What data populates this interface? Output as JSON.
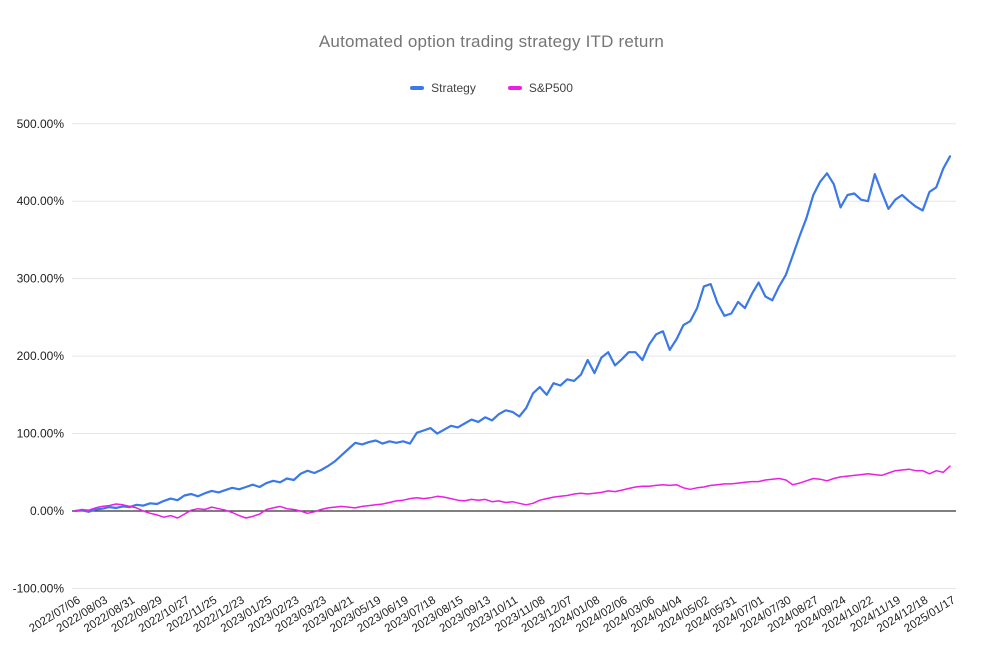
{
  "chart": {
    "title": "Automated option trading strategy ITD return"
  },
  "colors": {
    "strategy_line": "#3b78e8",
    "sp500_line": "#ea1ee4",
    "grid": "#e6e6e6",
    "zero_line": "#333333",
    "title_text": "#757575",
    "axis_text": "#222222",
    "legend_text": "#424242",
    "background": "#ffffff"
  },
  "chart_data": {
    "type": "line",
    "title": "Automated option trading strategy ITD return",
    "unit": "percent",
    "grid": true,
    "legend_position": "top",
    "ylim": [
      -100,
      500
    ],
    "y_ticks": [
      {
        "value": -100,
        "label": "-100.00%"
      },
      {
        "value": 0,
        "label": "0.00%"
      },
      {
        "value": 100,
        "label": "100.00%"
      },
      {
        "value": 200,
        "label": "200.00%"
      },
      {
        "value": 300,
        "label": "300.00%"
      },
      {
        "value": 400,
        "label": "400.00%"
      },
      {
        "value": 500,
        "label": "500.00%"
      }
    ],
    "x_tick_labels": [
      "2022/07/06",
      "2022/08/03",
      "2022/08/31",
      "2022/09/29",
      "2022/10/27",
      "2022/11/25",
      "2022/12/23",
      "2023/01/25",
      "2023/02/23",
      "2023/03/23",
      "2023/04/21",
      "2023/05/19",
      "2023/06/19",
      "2023/07/18",
      "2023/08/15",
      "2023/09/13",
      "2023/10/11",
      "2023/11/08",
      "2023/12/07",
      "2024/01/08",
      "2024/02/06",
      "2024/03/06",
      "2024/04/04",
      "2024/05/02",
      "2024/05/31",
      "2024/07/01",
      "2024/07/30",
      "2024/08/27",
      "2024/09/24",
      "2024/10/22",
      "2024/11/19",
      "2024/12/18",
      "2025/01/17"
    ],
    "points_per_tick_interval": 4,
    "series": [
      {
        "name": "Strategy",
        "color": "#3b78e8",
        "values": [
          0,
          1,
          -1,
          2,
          3,
          5,
          4,
          6,
          5,
          8,
          7,
          10,
          9,
          13,
          16,
          14,
          20,
          22,
          19,
          23,
          26,
          24,
          27,
          30,
          28,
          31,
          34,
          31,
          36,
          39,
          37,
          42,
          40,
          48,
          52,
          49,
          53,
          58,
          64,
          72,
          80,
          88,
          86,
          89,
          91,
          87,
          90,
          88,
          90,
          87,
          101,
          104,
          107,
          100,
          105,
          110,
          108,
          113,
          118,
          115,
          121,
          117,
          125,
          130,
          128,
          122,
          133,
          152,
          160,
          150,
          165,
          162,
          170,
          168,
          176,
          195,
          178,
          198,
          205,
          188,
          196,
          205,
          205,
          195,
          215,
          228,
          232,
          208,
          222,
          240,
          245,
          262,
          290,
          293,
          268,
          252,
          255,
          270,
          262,
          280,
          295,
          277,
          272,
          290,
          305,
          330,
          355,
          378,
          408,
          425,
          436,
          422,
          392,
          408,
          410,
          402,
          400,
          435,
          412,
          390,
          402,
          408,
          400,
          393,
          388,
          412,
          418,
          442,
          458
        ]
      },
      {
        "name": "S&P500",
        "color": "#ea1ee4",
        "values": [
          0,
          2,
          1,
          4,
          6,
          7,
          9,
          8,
          6,
          4,
          0,
          -3,
          -5,
          -8,
          -6,
          -9,
          -4,
          1,
          3,
          2,
          5,
          3,
          1,
          -2,
          -6,
          -9,
          -7,
          -4,
          2,
          4,
          6,
          3,
          2,
          0,
          -3,
          -1,
          2,
          4,
          5,
          6,
          5,
          4,
          6,
          7,
          8,
          9,
          11,
          13,
          14,
          16,
          17,
          16,
          17,
          19,
          18,
          16,
          14,
          13,
          15,
          14,
          15,
          12,
          13,
          11,
          12,
          10,
          8,
          10,
          14,
          16,
          18,
          19,
          20,
          22,
          23,
          22,
          23,
          24,
          26,
          25,
          27,
          29,
          31,
          32,
          32,
          33,
          34,
          33,
          34,
          30,
          28,
          30,
          31,
          33,
          34,
          35,
          35,
          36,
          37,
          38,
          38,
          40,
          41,
          42,
          40,
          34,
          36,
          39,
          42,
          41,
          39,
          42,
          44,
          45,
          46,
          47,
          48,
          47,
          46,
          49,
          52,
          53,
          54,
          52,
          52,
          48,
          52,
          50,
          58
        ]
      }
    ]
  }
}
